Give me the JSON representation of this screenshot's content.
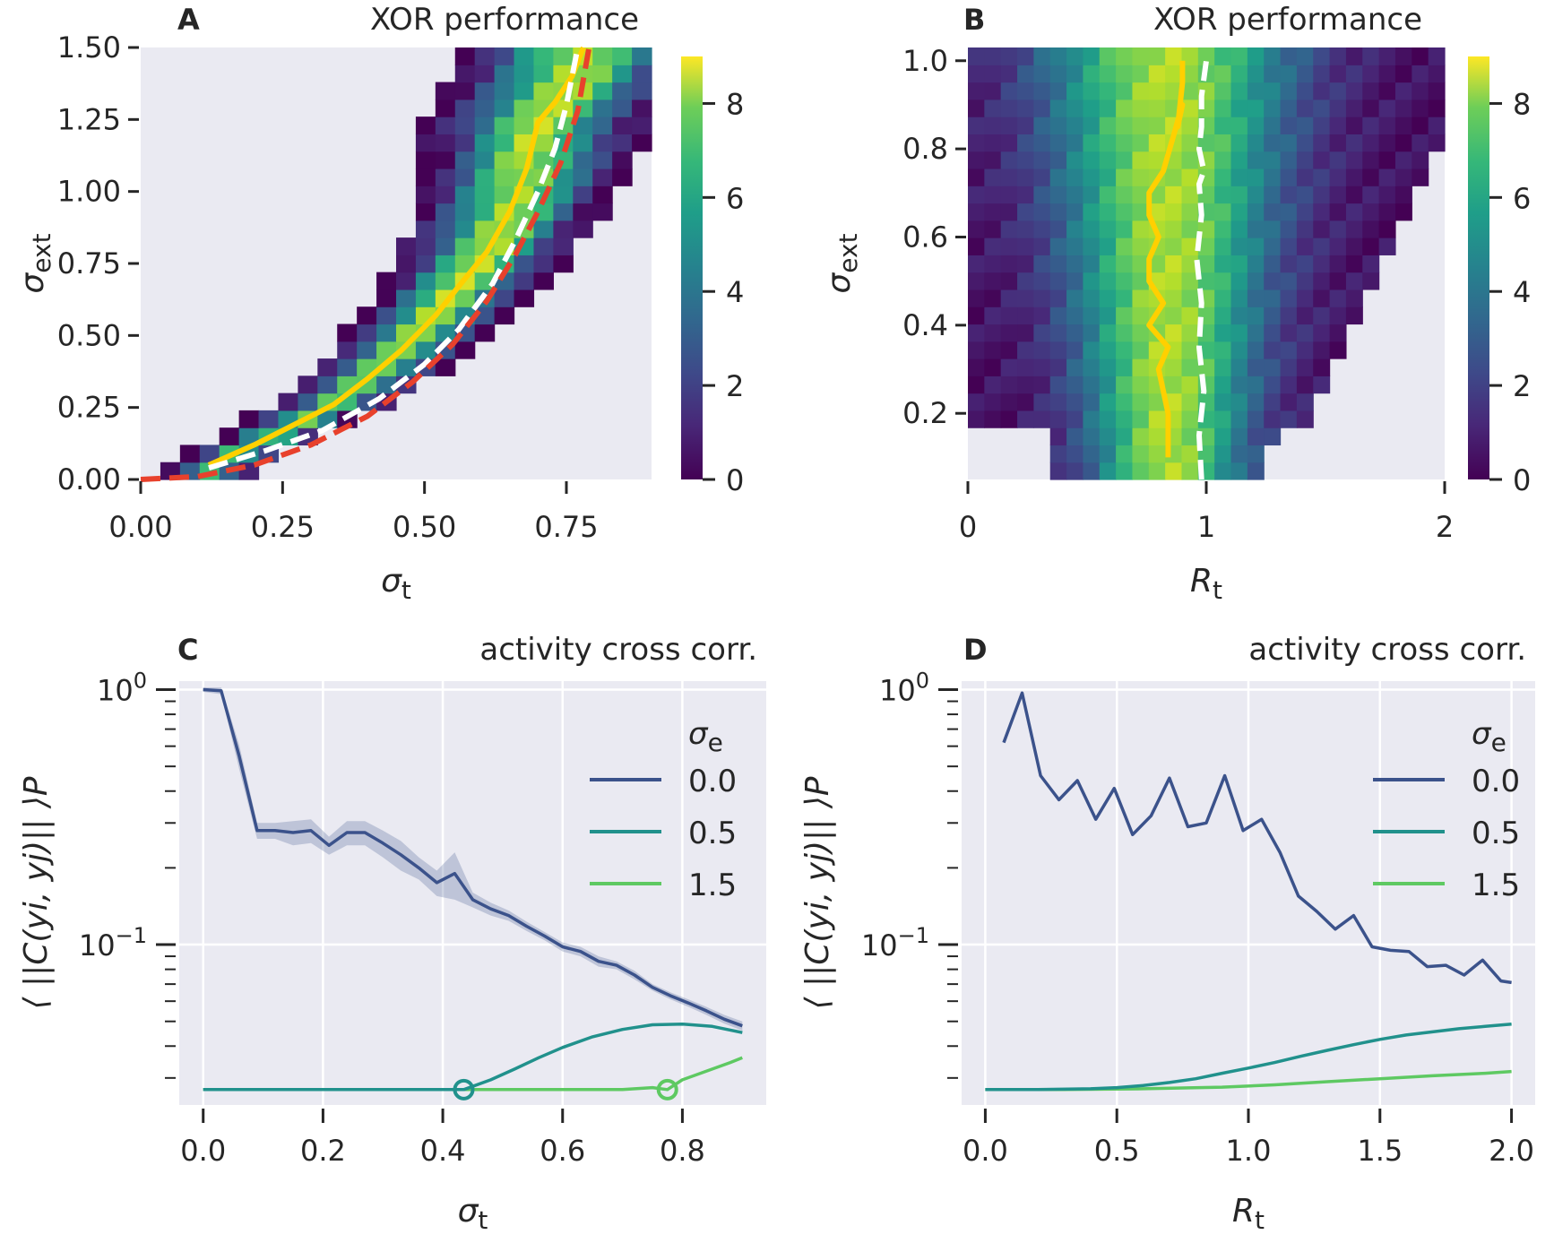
{
  "chart_data": [
    {
      "panel": "A",
      "type": "heatmap",
      "title": "XOR performance",
      "xlabel": "σt",
      "ylabel": "σext",
      "xlim": [
        0.0,
        0.9
      ],
      "ylim": [
        0.0,
        1.5
      ],
      "xticks": [
        "0.00",
        "0.25",
        "0.50",
        "0.75"
      ],
      "yticks": [
        "0.00",
        "0.25",
        "0.50",
        "0.75",
        "1.00",
        "1.25",
        "1.50"
      ],
      "colorbar": {
        "range": [
          0,
          9
        ],
        "ticks": [
          "0",
          "2",
          "4",
          "6",
          "8"
        ],
        "colormap": "viridis"
      },
      "lines": [
        {
          "style": "solid",
          "color": "#ffd000",
          "x": [
            0.12,
            0.2,
            0.26,
            0.34,
            0.4,
            0.46,
            0.52,
            0.56,
            0.61,
            0.65,
            0.68,
            0.7,
            0.73,
            0.76,
            0.78
          ],
          "y": [
            0.05,
            0.12,
            0.18,
            0.26,
            0.35,
            0.45,
            0.57,
            0.67,
            0.79,
            0.93,
            1.08,
            1.24,
            1.31,
            1.4,
            1.5
          ]
        },
        {
          "style": "dashed",
          "color": "#ffffff",
          "x": [
            0.12,
            0.22,
            0.32,
            0.42,
            0.5,
            0.56,
            0.62,
            0.66,
            0.7,
            0.73,
            0.75,
            0.77
          ],
          "y": [
            0.04,
            0.1,
            0.17,
            0.28,
            0.4,
            0.52,
            0.68,
            0.83,
            1.0,
            1.15,
            1.3,
            1.5
          ]
        },
        {
          "style": "dashed",
          "color": "#e8412c",
          "x": [
            0.0,
            0.1,
            0.2,
            0.3,
            0.4,
            0.48,
            0.55,
            0.61,
            0.66,
            0.7,
            0.74,
            0.77,
            0.79
          ],
          "y": [
            0.0,
            0.01,
            0.05,
            0.12,
            0.22,
            0.34,
            0.47,
            0.62,
            0.78,
            0.93,
            1.1,
            1.28,
            1.5
          ]
        }
      ]
    },
    {
      "panel": "B",
      "type": "heatmap",
      "title": "XOR performance",
      "xlabel": "Rt",
      "ylabel": "σext",
      "xlim": [
        0.0,
        2.0
      ],
      "ylim": [
        0.05,
        1.03
      ],
      "xticks": [
        "0",
        "1",
        "2"
      ],
      "yticks": [
        "0.2",
        "0.4",
        "0.6",
        "0.8",
        "1.0"
      ],
      "colorbar": {
        "range": [
          0,
          9
        ],
        "ticks": [
          "0",
          "2",
          "4",
          "6",
          "8"
        ],
        "colormap": "viridis"
      },
      "lines": [
        {
          "style": "solid",
          "color": "#ffd000",
          "x": [
            0.84,
            0.84,
            0.8,
            0.84,
            0.76,
            0.82,
            0.76,
            0.76,
            0.8,
            0.76,
            0.76,
            0.82,
            0.9,
            0.88,
            0.9,
            0.9
          ],
          "y": [
            0.1,
            0.2,
            0.3,
            0.35,
            0.4,
            0.45,
            0.5,
            0.55,
            0.6,
            0.65,
            0.7,
            0.75,
            0.9,
            0.85,
            0.95,
            1.0
          ]
        },
        {
          "style": "dashed",
          "color": "#ffffff",
          "x": [
            0.98,
            0.97,
            0.99,
            0.97,
            0.98,
            0.96,
            0.98,
            0.97,
            0.99,
            0.97,
            0.98,
            0.98,
            1.0
          ],
          "y": [
            0.05,
            0.15,
            0.25,
            0.35,
            0.45,
            0.55,
            0.65,
            0.72,
            0.75,
            0.8,
            0.85,
            0.92,
            1.0
          ]
        }
      ]
    },
    {
      "panel": "C",
      "type": "line",
      "title": "activity cross corr.",
      "xlabel": "σt",
      "ylabel": "⟨ ||C(yi, yj)|| ⟩P",
      "yscale": "log",
      "xlim": [
        -0.04,
        0.94
      ],
      "ylim": [
        0.0235,
        1.08
      ],
      "xticks": [
        "0.0",
        "0.2",
        "0.4",
        "0.6",
        "0.8"
      ],
      "yticks": [
        "10^0",
        "10^-1"
      ],
      "grid": true,
      "legend": {
        "title": "σe",
        "placement": "top-right"
      },
      "series": [
        {
          "name": "0.0",
          "color": "#3b528b",
          "x": [
            0.0,
            0.03,
            0.06,
            0.09,
            0.12,
            0.15,
            0.18,
            0.21,
            0.24,
            0.27,
            0.3,
            0.33,
            0.36,
            0.39,
            0.42,
            0.45,
            0.48,
            0.51,
            0.54,
            0.57,
            0.6,
            0.63,
            0.66,
            0.69,
            0.72,
            0.75,
            0.78,
            0.81,
            0.84,
            0.87,
            0.9
          ],
          "y": [
            1.0,
            0.99,
            0.55,
            0.28,
            0.28,
            0.275,
            0.28,
            0.245,
            0.275,
            0.275,
            0.25,
            0.225,
            0.2,
            0.175,
            0.19,
            0.15,
            0.138,
            0.13,
            0.118,
            0.108,
            0.098,
            0.094,
            0.086,
            0.083,
            0.076,
            0.068,
            0.063,
            0.059,
            0.055,
            0.051,
            0.048
          ],
          "band": [
            0.02,
            0.03,
            0.06,
            0.02,
            0.02,
            0.03,
            0.03,
            0.02,
            0.03,
            0.03,
            0.03,
            0.03,
            0.02,
            0.02,
            0.04,
            0.01,
            0.008,
            0.006,
            0.005,
            0.004,
            0.004,
            0.004,
            0.004,
            0.003,
            0.003,
            0.002,
            0.002,
            0.002,
            0.002,
            0.002,
            0.002
          ]
        },
        {
          "name": "0.5",
          "color": "#21918c",
          "x": [
            0.0,
            0.1,
            0.2,
            0.3,
            0.4,
            0.435,
            0.48,
            0.52,
            0.56,
            0.6,
            0.65,
            0.7,
            0.75,
            0.8,
            0.85,
            0.9
          ],
          "y": [
            0.027,
            0.027,
            0.027,
            0.027,
            0.027,
            0.027,
            0.0295,
            0.0325,
            0.036,
            0.0395,
            0.0435,
            0.0465,
            0.0485,
            0.0488,
            0.0478,
            0.0452
          ]
        },
        {
          "name": "1.5",
          "color": "#5ec962",
          "x": [
            0.0,
            0.1,
            0.2,
            0.3,
            0.4,
            0.5,
            0.6,
            0.7,
            0.75,
            0.775,
            0.8,
            0.85,
            0.88,
            0.9
          ],
          "y": [
            0.027,
            0.027,
            0.027,
            0.027,
            0.027,
            0.027,
            0.027,
            0.027,
            0.0275,
            0.027,
            0.0295,
            0.0325,
            0.0345,
            0.036
          ]
        }
      ],
      "markers": [
        {
          "x": 0.435,
          "y": 0.027,
          "color": "#21918c",
          "shape": "open-circle"
        },
        {
          "x": 0.775,
          "y": 0.027,
          "color": "#5ec962",
          "shape": "open-circle"
        }
      ]
    },
    {
      "panel": "D",
      "type": "line",
      "title": "activity cross corr.",
      "xlabel": "Rt",
      "ylabel": "⟨ ||C(yi, yj)|| ⟩P",
      "yscale": "log",
      "xlim": [
        -0.09,
        2.09
      ],
      "ylim": [
        0.0235,
        1.08
      ],
      "xticks": [
        "0.0",
        "0.5",
        "1.0",
        "1.5",
        "2.0"
      ],
      "yticks": [
        "10^0",
        "10^-1"
      ],
      "grid": true,
      "legend": {
        "title": "σe",
        "placement": "top-right"
      },
      "series": [
        {
          "name": "0.0",
          "color": "#3b528b",
          "x": [
            0.07,
            0.14,
            0.21,
            0.28,
            0.35,
            0.42,
            0.49,
            0.56,
            0.63,
            0.7,
            0.77,
            0.84,
            0.91,
            0.98,
            1.05,
            1.12,
            1.19,
            1.26,
            1.33,
            1.4,
            1.47,
            1.54,
            1.61,
            1.68,
            1.75,
            1.82,
            1.89,
            1.96,
            2.0
          ],
          "y": [
            0.62,
            0.97,
            0.46,
            0.37,
            0.44,
            0.31,
            0.41,
            0.27,
            0.32,
            0.45,
            0.29,
            0.3,
            0.46,
            0.28,
            0.31,
            0.23,
            0.155,
            0.135,
            0.115,
            0.13,
            0.098,
            0.095,
            0.094,
            0.082,
            0.083,
            0.076,
            0.087,
            0.072,
            0.071
          ]
        },
        {
          "name": "0.5",
          "color": "#21918c",
          "x": [
            0.0,
            0.2,
            0.4,
            0.5,
            0.6,
            0.7,
            0.8,
            0.9,
            1.0,
            1.1,
            1.2,
            1.3,
            1.4,
            1.5,
            1.6,
            1.7,
            1.8,
            1.9,
            2.0
          ],
          "y": [
            0.027,
            0.027,
            0.0272,
            0.0275,
            0.028,
            0.0288,
            0.0298,
            0.0313,
            0.0328,
            0.0345,
            0.0365,
            0.0385,
            0.0405,
            0.0425,
            0.0442,
            0.0455,
            0.0468,
            0.0478,
            0.0488
          ]
        },
        {
          "name": "1.5",
          "color": "#5ec962",
          "x": [
            0.0,
            0.3,
            0.6,
            0.9,
            1.1,
            1.3,
            1.5,
            1.7,
            1.9,
            2.0
          ],
          "y": [
            0.027,
            0.027,
            0.0272,
            0.0276,
            0.0282,
            0.029,
            0.0298,
            0.0306,
            0.0313,
            0.0318
          ]
        }
      ]
    }
  ]
}
